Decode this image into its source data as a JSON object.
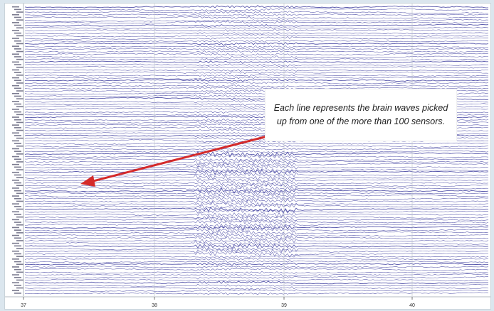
{
  "annotation": {
    "text": "Each line represents the brain waves picked up from one of the more than 100 sensors."
  },
  "axis": {
    "ticks": [
      {
        "value": 37,
        "label": "37"
      },
      {
        "value": 38,
        "label": "38"
      },
      {
        "value": 39,
        "label": "39"
      },
      {
        "value": 40,
        "label": "40"
      }
    ]
  },
  "colors": {
    "trace": "#3a3a9c",
    "arrow": "#d42a2a",
    "grid": "#b9c2c9",
    "background": "#ffffff"
  },
  "chart_data": {
    "type": "line",
    "x_ticks": [
      37,
      38,
      39,
      40
    ],
    "traces_count_approx": 110,
    "channel_labels_shown": true
  }
}
